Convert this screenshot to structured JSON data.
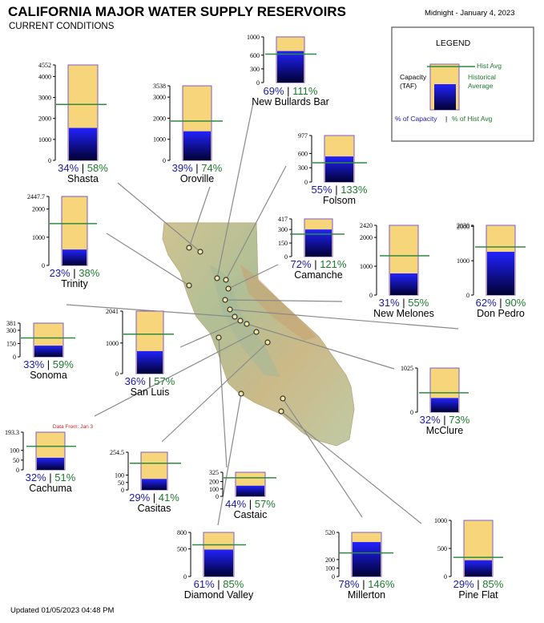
{
  "header": {
    "title": "CALIFORNIA MAJOR WATER SUPPLY RESERVOIRS",
    "subtitle": "CURRENT CONDITIONS",
    "timestamp": "Midnight - January 4, 2023"
  },
  "footer": {
    "updated": "Updated 01/05/2023 04:48 PM"
  },
  "legend": {
    "title": "LEGEND",
    "capacity_label_1": "Capacity",
    "capacity_label_2": "(TAF)",
    "hist_avg_label": "Hist Avg",
    "historical_label_1": "Historical",
    "historical_label_2": "Average",
    "pct_capacity_label": "% of Capacity",
    "separator": "|",
    "pct_hist_label": "% of Hist Avg"
  },
  "colors": {
    "capacity_fill": "#f7d57a",
    "storage_top": "#2222ff",
    "storage_bottom": "#000033",
    "hist_avg_line": "#2e8b3e",
    "pct_capacity_text": "#1a1aa6",
    "pct_hist_text": "#1e7a2e",
    "note_text": "#cc2222"
  },
  "chart_data": {
    "type": "bar",
    "units": "TAF",
    "reservoirs": [
      {
        "name": "Shasta",
        "capacity": 4552,
        "ticks": [
          0,
          1000,
          2000,
          3000,
          4000,
          4552
        ],
        "pct_capacity": "34%",
        "pct_hist": "58%",
        "storage": 1548,
        "hist_avg": 2669
      },
      {
        "name": "Oroville",
        "capacity": 3538,
        "ticks": [
          0,
          1000,
          2000,
          3000,
          3538
        ],
        "pct_capacity": "39%",
        "pct_hist": "74%",
        "storage": 1380,
        "hist_avg": 1865
      },
      {
        "name": "New Bullards Bar",
        "capacity": 1000,
        "ticks": [
          0,
          300,
          600,
          1000
        ],
        "pct_capacity": "69%",
        "pct_hist": "111%",
        "storage": 690,
        "hist_avg": 622
      },
      {
        "name": "Folsom",
        "capacity": 977,
        "ticks": [
          0,
          300,
          600,
          977
        ],
        "pct_capacity": "55%",
        "pct_hist": "133%",
        "storage": 537,
        "hist_avg": 404
      },
      {
        "name": "Trinity",
        "capacity": 2447.7,
        "ticks": [
          0,
          1000,
          2000,
          2447.7
        ],
        "pct_capacity": "23%",
        "pct_hist": "38%",
        "storage": 563,
        "hist_avg": 1482
      },
      {
        "name": "Camanche",
        "capacity": 417,
        "ticks": [
          0,
          150,
          300,
          417
        ],
        "pct_capacity": "72%",
        "pct_hist": "121%",
        "storage": 300,
        "hist_avg": 248
      },
      {
        "name": "New Melones",
        "capacity": 2420,
        "ticks": [
          0,
          1000,
          2000,
          2420
        ],
        "pct_capacity": "31%",
        "pct_hist": "55%",
        "storage": 750,
        "hist_avg": 1364
      },
      {
        "name": "Don Pedro",
        "capacity": 2030,
        "ticks": [
          0,
          1000,
          2000,
          2030
        ],
        "pct_capacity": "62%",
        "pct_hist": "90%",
        "storage": 1259,
        "hist_avg": 1399
      },
      {
        "name": "Sonoma",
        "capacity": 381,
        "ticks": [
          0,
          150,
          300,
          381
        ],
        "pct_capacity": "33%",
        "pct_hist": "59%",
        "storage": 126,
        "hist_avg": 213
      },
      {
        "name": "San Luis",
        "capacity": 2041,
        "ticks": [
          0,
          1000,
          2041
        ],
        "pct_capacity": "36%",
        "pct_hist": "57%",
        "storage": 735,
        "hist_avg": 1289
      },
      {
        "name": "McClure",
        "capacity": 1025,
        "ticks": [
          0,
          1025
        ],
        "pct_capacity": "32%",
        "pct_hist": "73%",
        "storage": 328,
        "hist_avg": 449
      },
      {
        "name": "Cachuma",
        "capacity": 193.3,
        "ticks": [
          0,
          50,
          100,
          193.3
        ],
        "pct_capacity": "32%",
        "pct_hist": "51%",
        "storage": 62,
        "hist_avg": 121,
        "note": "Data From: Jan 3"
      },
      {
        "name": "Casitas",
        "capacity": 254.5,
        "ticks": [
          0,
          50,
          100,
          254.5
        ],
        "pct_capacity": "29%",
        "pct_hist": "41%",
        "storage": 74,
        "hist_avg": 180
      },
      {
        "name": "Castaic",
        "capacity": 325,
        "ticks": [
          0,
          100,
          200,
          325
        ],
        "pct_capacity": "44%",
        "pct_hist": "57%",
        "storage": 143,
        "hist_avg": 251
      },
      {
        "name": "Diamond Valley",
        "capacity": 800,
        "ticks": [
          0,
          500,
          800
        ],
        "pct_capacity": "61%",
        "pct_hist": "85%",
        "storage": 488,
        "hist_avg": 574
      },
      {
        "name": "Millerton",
        "capacity": 520,
        "ticks": [
          0,
          100,
          200,
          520
        ],
        "pct_capacity": "78%",
        "pct_hist": "146%",
        "storage": 406,
        "hist_avg": 278
      },
      {
        "name": "Pine Flat",
        "capacity": 1000,
        "ticks": [
          0,
          500,
          1000
        ],
        "pct_capacity": "29%",
        "pct_hist": "85%",
        "storage": 290,
        "hist_avg": 341
      }
    ]
  }
}
